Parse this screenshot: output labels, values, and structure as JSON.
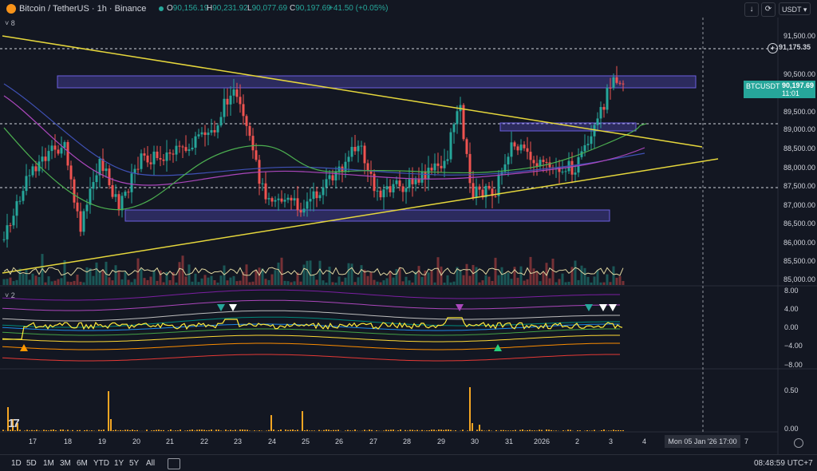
{
  "header": {
    "symbol_title": "Bitcoin / TetherUS · 1h · Binance",
    "open_label": "O",
    "open": "90,156.19",
    "high_label": "H",
    "high": "90,231.92",
    "low_label": "L",
    "low": "90,077.69",
    "close_label": "C",
    "close": "90,197.69",
    "change": "+41.50 (+0.05%)",
    "currency": "USDT",
    "indicators_count": "8"
  },
  "price_axis": [
    "91,500.00",
    "90,500.00",
    "89,500.00",
    "89,000.00",
    "88,500.00",
    "88,000.00",
    "87,500.00",
    "87,000.00",
    "86,500.00",
    "86,000.00",
    "85,500.00",
    "85,000.00"
  ],
  "horizontal_line_price": "91,175.35",
  "last_price": {
    "symbol": "BTCUSDT",
    "price": "90,197.69",
    "countdown": "11:01"
  },
  "oscillator": {
    "count": "2",
    "axis": [
      "8.00",
      "4.00",
      "0.00",
      "−4.00",
      "−8.00"
    ]
  },
  "volume_pane": {
    "axis": [
      "0.50",
      "0.00"
    ]
  },
  "time_axis": [
    "17",
    "18",
    "19",
    "20",
    "21",
    "22",
    "23",
    "24",
    "25",
    "26",
    "27",
    "28",
    "29",
    "30",
    "31",
    "2026",
    "2",
    "3",
    "4",
    "7"
  ],
  "crosshair_date": "Mon 05 Jan '26   17:00",
  "ranges": [
    "1D",
    "5D",
    "1M",
    "3M",
    "6M",
    "YTD",
    "1Y",
    "5Y",
    "All"
  ],
  "clock": "08:48:59 UTC+7",
  "colors": {
    "up": "#26a69a",
    "down": "#ef5350",
    "trendline": "#e6d73c",
    "box": "#5b4fcf",
    "bg": "#131722"
  }
}
